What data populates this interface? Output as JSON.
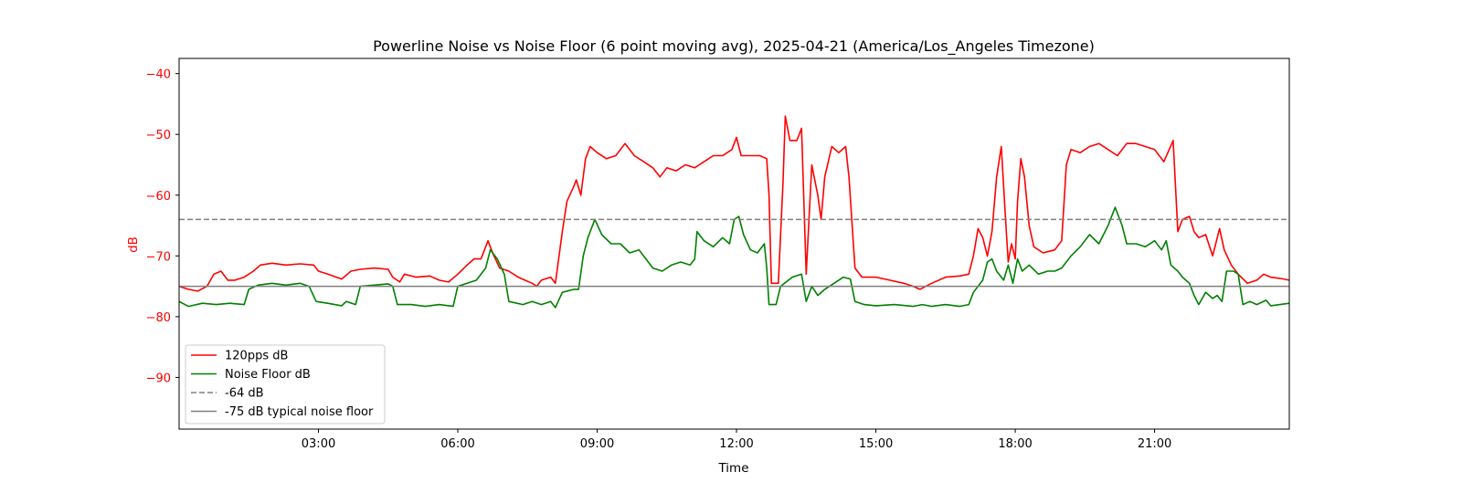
{
  "chart_data": {
    "type": "line",
    "title": "Powerline Noise vs Noise Floor (6 point moving avg), 2025-04-21 (America/Los_Angeles Timezone)",
    "xlabel": "Time",
    "ylabel": "dB",
    "ylabel_color": "#ff0000",
    "ytick_color": "#ff0000",
    "xlim_hours": [
      0,
      23.9
    ],
    "ylim": [
      -98.5,
      -37.5
    ],
    "x_ticks": [
      "03:00",
      "06:00",
      "09:00",
      "12:00",
      "15:00",
      "18:00",
      "21:00"
    ],
    "x_tick_hours": [
      3,
      6,
      9,
      12,
      15,
      18,
      21
    ],
    "y_ticks": [
      -40,
      -50,
      -60,
      -70,
      -80,
      -90
    ],
    "y_tick_labels": [
      "−40",
      "−50",
      "−60",
      "−70",
      "−80",
      "−90"
    ],
    "grid": false,
    "legend_position": "lower-left",
    "series": [
      {
        "name": "120pps dB",
        "color": "#ff0000",
        "style": "solid",
        "points": [
          [
            0.0,
            -75.0
          ],
          [
            0.2,
            -75.5
          ],
          [
            0.4,
            -75.8
          ],
          [
            0.6,
            -75.0
          ],
          [
            0.75,
            -73.0
          ],
          [
            0.9,
            -72.5
          ],
          [
            1.05,
            -74.0
          ],
          [
            1.2,
            -74.0
          ],
          [
            1.4,
            -73.5
          ],
          [
            1.6,
            -72.5
          ],
          [
            1.75,
            -71.5
          ],
          [
            2.0,
            -71.2
          ],
          [
            2.3,
            -71.5
          ],
          [
            2.6,
            -71.3
          ],
          [
            2.9,
            -71.5
          ],
          [
            3.0,
            -72.5
          ],
          [
            3.2,
            -73.0
          ],
          [
            3.5,
            -73.8
          ],
          [
            3.7,
            -72.5
          ],
          [
            3.9,
            -72.2
          ],
          [
            4.2,
            -72.0
          ],
          [
            4.5,
            -72.2
          ],
          [
            4.6,
            -73.5
          ],
          [
            4.75,
            -74.3
          ],
          [
            4.85,
            -73.0
          ],
          [
            5.1,
            -73.5
          ],
          [
            5.4,
            -73.3
          ],
          [
            5.6,
            -74.0
          ],
          [
            5.8,
            -74.3
          ],
          [
            6.0,
            -73.0
          ],
          [
            6.2,
            -71.5
          ],
          [
            6.35,
            -70.5
          ],
          [
            6.5,
            -70.5
          ],
          [
            6.65,
            -67.5
          ],
          [
            6.75,
            -69.5
          ],
          [
            6.9,
            -72.0
          ],
          [
            7.1,
            -72.5
          ],
          [
            7.3,
            -73.5
          ],
          [
            7.6,
            -74.5
          ],
          [
            7.7,
            -75.0
          ],
          [
            7.8,
            -74.0
          ],
          [
            8.0,
            -73.5
          ],
          [
            8.1,
            -74.5
          ],
          [
            8.25,
            -66.0
          ],
          [
            8.35,
            -61.0
          ],
          [
            8.5,
            -58.5
          ],
          [
            8.55,
            -57.5
          ],
          [
            8.65,
            -60.0
          ],
          [
            8.75,
            -54.0
          ],
          [
            8.85,
            -52.0
          ],
          [
            9.0,
            -53.0
          ],
          [
            9.2,
            -54.0
          ],
          [
            9.4,
            -53.5
          ],
          [
            9.6,
            -51.5
          ],
          [
            9.8,
            -53.5
          ],
          [
            10.0,
            -54.5
          ],
          [
            10.2,
            -55.5
          ],
          [
            10.35,
            -57.0
          ],
          [
            10.5,
            -55.5
          ],
          [
            10.7,
            -56.0
          ],
          [
            10.9,
            -55.0
          ],
          [
            11.1,
            -55.5
          ],
          [
            11.3,
            -54.5
          ],
          [
            11.5,
            -53.5
          ],
          [
            11.7,
            -53.5
          ],
          [
            11.9,
            -52.5
          ],
          [
            12.0,
            -50.5
          ],
          [
            12.1,
            -53.5
          ],
          [
            12.3,
            -53.5
          ],
          [
            12.5,
            -53.5
          ],
          [
            12.65,
            -54.0
          ],
          [
            12.7,
            -60.0
          ],
          [
            12.75,
            -74.5
          ],
          [
            12.9,
            -74.5
          ],
          [
            13.0,
            -58.0
          ],
          [
            13.05,
            -47.0
          ],
          [
            13.15,
            -51.0
          ],
          [
            13.3,
            -51.0
          ],
          [
            13.4,
            -49.0
          ],
          [
            13.5,
            -73.0
          ],
          [
            13.62,
            -55.0
          ],
          [
            13.75,
            -60.0
          ],
          [
            13.82,
            -64.0
          ],
          [
            13.9,
            -57.0
          ],
          [
            14.05,
            -52.0
          ],
          [
            14.2,
            -53.0
          ],
          [
            14.35,
            -52.0
          ],
          [
            14.42,
            -57.0
          ],
          [
            14.55,
            -72.0
          ],
          [
            14.7,
            -73.5
          ],
          [
            15.0,
            -73.5
          ],
          [
            15.3,
            -74.0
          ],
          [
            15.6,
            -74.5
          ],
          [
            15.8,
            -75.0
          ],
          [
            15.95,
            -75.5
          ],
          [
            16.2,
            -74.5
          ],
          [
            16.5,
            -73.5
          ],
          [
            16.8,
            -73.3
          ],
          [
            17.0,
            -73.0
          ],
          [
            17.1,
            -70.0
          ],
          [
            17.2,
            -65.5
          ],
          [
            17.3,
            -67.0
          ],
          [
            17.4,
            -70.0
          ],
          [
            17.5,
            -66.0
          ],
          [
            17.6,
            -57.0
          ],
          [
            17.7,
            -52.0
          ],
          [
            17.8,
            -65.0
          ],
          [
            17.85,
            -71.0
          ],
          [
            17.92,
            -68.0
          ],
          [
            18.0,
            -70.5
          ],
          [
            18.05,
            -61.0
          ],
          [
            18.12,
            -54.0
          ],
          [
            18.2,
            -57.0
          ],
          [
            18.3,
            -65.0
          ],
          [
            18.4,
            -68.5
          ],
          [
            18.6,
            -69.5
          ],
          [
            18.85,
            -69.0
          ],
          [
            19.0,
            -67.5
          ],
          [
            19.1,
            -55.0
          ],
          [
            19.2,
            -52.5
          ],
          [
            19.4,
            -53.0
          ],
          [
            19.6,
            -52.0
          ],
          [
            19.8,
            -51.5
          ],
          [
            20.0,
            -52.5
          ],
          [
            20.2,
            -53.5
          ],
          [
            20.4,
            -51.5
          ],
          [
            20.6,
            -51.5
          ],
          [
            20.8,
            -52.0
          ],
          [
            21.0,
            -52.5
          ],
          [
            21.2,
            -54.5
          ],
          [
            21.4,
            -51.0
          ],
          [
            21.5,
            -66.0
          ],
          [
            21.6,
            -64.0
          ],
          [
            21.75,
            -63.5
          ],
          [
            21.85,
            -66.0
          ],
          [
            21.95,
            -67.0
          ],
          [
            22.1,
            -66.5
          ],
          [
            22.25,
            -70.0
          ],
          [
            22.4,
            -65.5
          ],
          [
            22.5,
            -69.0
          ],
          [
            22.65,
            -71.5
          ],
          [
            22.8,
            -73.0
          ],
          [
            23.0,
            -74.5
          ],
          [
            23.2,
            -74.0
          ],
          [
            23.35,
            -73.0
          ],
          [
            23.5,
            -73.5
          ],
          [
            23.7,
            -73.7
          ],
          [
            23.9,
            -74.0
          ]
        ]
      },
      {
        "name": "Noise Floor dB",
        "color": "#008000",
        "style": "solid",
        "points": [
          [
            0.0,
            -77.5
          ],
          [
            0.2,
            -78.3
          ],
          [
            0.5,
            -77.8
          ],
          [
            0.8,
            -78.0
          ],
          [
            1.1,
            -77.8
          ],
          [
            1.4,
            -78.0
          ],
          [
            1.5,
            -75.5
          ],
          [
            1.7,
            -74.8
          ],
          [
            2.0,
            -74.5
          ],
          [
            2.3,
            -74.8
          ],
          [
            2.6,
            -74.5
          ],
          [
            2.8,
            -75.0
          ],
          [
            2.95,
            -77.5
          ],
          [
            3.2,
            -77.8
          ],
          [
            3.5,
            -78.2
          ],
          [
            3.6,
            -77.5
          ],
          [
            3.8,
            -78.0
          ],
          [
            3.9,
            -75.0
          ],
          [
            4.2,
            -74.8
          ],
          [
            4.5,
            -74.6
          ],
          [
            4.6,
            -75.0
          ],
          [
            4.7,
            -78.0
          ],
          [
            5.0,
            -78.0
          ],
          [
            5.3,
            -78.3
          ],
          [
            5.6,
            -78.0
          ],
          [
            5.9,
            -78.3
          ],
          [
            6.0,
            -75.0
          ],
          [
            6.2,
            -74.5
          ],
          [
            6.4,
            -74.0
          ],
          [
            6.6,
            -72.0
          ],
          [
            6.7,
            -69.0
          ],
          [
            6.85,
            -70.5
          ],
          [
            7.0,
            -73.0
          ],
          [
            7.1,
            -77.5
          ],
          [
            7.4,
            -78.0
          ],
          [
            7.6,
            -77.5
          ],
          [
            7.8,
            -78.0
          ],
          [
            8.0,
            -77.5
          ],
          [
            8.1,
            -78.5
          ],
          [
            8.25,
            -76.0
          ],
          [
            8.5,
            -75.5
          ],
          [
            8.6,
            -75.5
          ],
          [
            8.7,
            -70.0
          ],
          [
            8.8,
            -67.0
          ],
          [
            8.95,
            -64.0
          ],
          [
            9.1,
            -66.5
          ],
          [
            9.3,
            -68.0
          ],
          [
            9.5,
            -68.0
          ],
          [
            9.7,
            -69.5
          ],
          [
            9.9,
            -69.0
          ],
          [
            10.05,
            -70.5
          ],
          [
            10.2,
            -72.0
          ],
          [
            10.4,
            -72.5
          ],
          [
            10.6,
            -71.5
          ],
          [
            10.8,
            -71.0
          ],
          [
            11.0,
            -71.5
          ],
          [
            11.1,
            -70.5
          ],
          [
            11.15,
            -66.0
          ],
          [
            11.3,
            -67.5
          ],
          [
            11.5,
            -68.5
          ],
          [
            11.7,
            -67.0
          ],
          [
            11.85,
            -68.0
          ],
          [
            11.95,
            -64.0
          ],
          [
            12.05,
            -63.5
          ],
          [
            12.15,
            -66.5
          ],
          [
            12.3,
            -69.0
          ],
          [
            12.45,
            -69.5
          ],
          [
            12.6,
            -68.0
          ],
          [
            12.65,
            -72.0
          ],
          [
            12.7,
            -78.0
          ],
          [
            12.85,
            -78.0
          ],
          [
            12.95,
            -75.0
          ],
          [
            13.2,
            -73.5
          ],
          [
            13.4,
            -73.0
          ],
          [
            13.5,
            -77.5
          ],
          [
            13.62,
            -75.0
          ],
          [
            13.75,
            -76.5
          ],
          [
            13.9,
            -75.5
          ],
          [
            14.1,
            -74.5
          ],
          [
            14.3,
            -73.5
          ],
          [
            14.45,
            -73.8
          ],
          [
            14.55,
            -77.5
          ],
          [
            14.75,
            -78.0
          ],
          [
            15.0,
            -78.2
          ],
          [
            15.4,
            -78.0
          ],
          [
            15.8,
            -78.3
          ],
          [
            16.0,
            -78.0
          ],
          [
            16.2,
            -78.3
          ],
          [
            16.5,
            -78.0
          ],
          [
            16.8,
            -78.3
          ],
          [
            17.0,
            -78.0
          ],
          [
            17.1,
            -76.0
          ],
          [
            17.3,
            -74.0
          ],
          [
            17.4,
            -71.0
          ],
          [
            17.5,
            -70.5
          ],
          [
            17.6,
            -72.5
          ],
          [
            17.75,
            -74.0
          ],
          [
            17.85,
            -71.5
          ],
          [
            17.95,
            -74.5
          ],
          [
            18.05,
            -70.5
          ],
          [
            18.15,
            -72.5
          ],
          [
            18.3,
            -71.5
          ],
          [
            18.5,
            -73.0
          ],
          [
            18.7,
            -72.5
          ],
          [
            18.85,
            -72.5
          ],
          [
            19.0,
            -72.0
          ],
          [
            19.2,
            -70.0
          ],
          [
            19.4,
            -68.5
          ],
          [
            19.6,
            -66.5
          ],
          [
            19.8,
            -68.0
          ],
          [
            20.0,
            -65.0
          ],
          [
            20.15,
            -62.0
          ],
          [
            20.3,
            -65.0
          ],
          [
            20.4,
            -68.0
          ],
          [
            20.6,
            -68.0
          ],
          [
            20.8,
            -68.5
          ],
          [
            21.0,
            -67.5
          ],
          [
            21.15,
            -69.0
          ],
          [
            21.25,
            -67.5
          ],
          [
            21.35,
            -71.5
          ],
          [
            21.5,
            -72.5
          ],
          [
            21.6,
            -73.5
          ],
          [
            21.75,
            -74.5
          ],
          [
            21.85,
            -76.5
          ],
          [
            21.95,
            -78.0
          ],
          [
            22.1,
            -76.0
          ],
          [
            22.25,
            -77.0
          ],
          [
            22.35,
            -76.5
          ],
          [
            22.45,
            -77.5
          ],
          [
            22.55,
            -72.5
          ],
          [
            22.7,
            -72.5
          ],
          [
            22.8,
            -73.0
          ],
          [
            22.9,
            -78.0
          ],
          [
            23.05,
            -77.5
          ],
          [
            23.2,
            -78.0
          ],
          [
            23.4,
            -77.3
          ],
          [
            23.5,
            -78.2
          ],
          [
            23.7,
            -78.0
          ],
          [
            23.9,
            -77.8
          ]
        ]
      },
      {
        "name": "-64 dB",
        "color": "#808080",
        "style": "dashed",
        "constant": -64
      },
      {
        "name": "-75 dB typical noise floor",
        "color": "#808080",
        "style": "solid",
        "constant": -75
      }
    ]
  }
}
